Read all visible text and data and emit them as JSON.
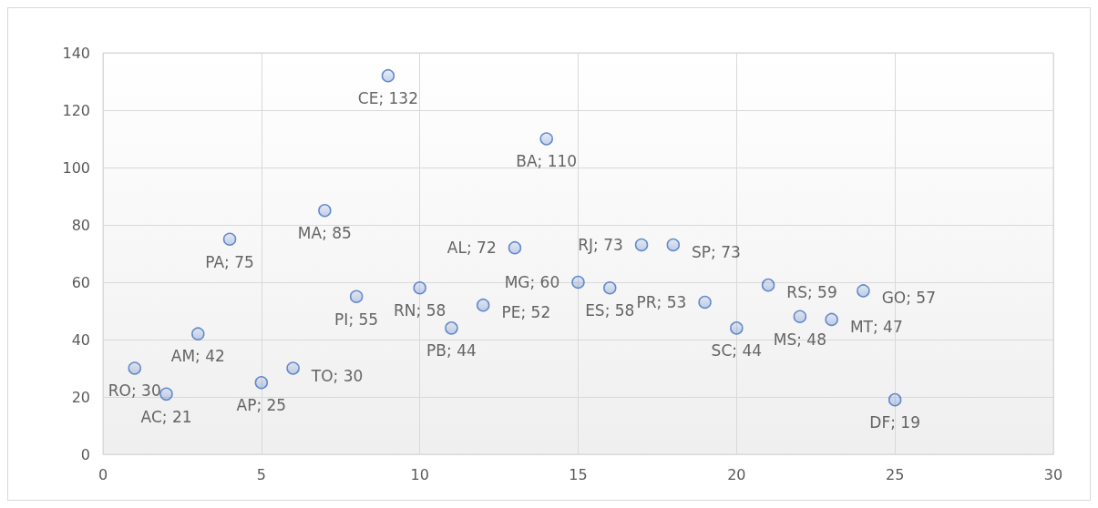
{
  "chart_data": {
    "type": "scatter",
    "x": [
      1,
      2,
      3,
      4,
      5,
      6,
      7,
      8,
      9,
      10,
      11,
      12,
      13,
      14,
      15,
      16,
      17,
      18,
      19,
      20,
      21,
      22,
      23,
      24,
      25
    ],
    "values": [
      30,
      21,
      42,
      75,
      25,
      30,
      85,
      55,
      132,
      58,
      44,
      52,
      72,
      110,
      60,
      58,
      73,
      73,
      53,
      44,
      59,
      48,
      47,
      57,
      19
    ],
    "value_labels": [
      "RO; 30",
      "AC; 21",
      "AM; 42",
      "PA; 75",
      "AP; 25",
      "TO; 30",
      "MA; 85",
      "PI; 55",
      "CE; 132",
      "RN; 58",
      "PB; 44",
      "PE; 52",
      "AL; 72",
      "BA; 110",
      "MG; 60",
      "ES; 58",
      "RJ; 73",
      "SP; 73",
      "PR; 53",
      "SC; 44",
      "RS; 59",
      "MS; 48",
      "MT; 47",
      "GO; 57",
      "DF; 19"
    ],
    "color": "#4472c4",
    "marker": "circle",
    "xlim": [
      0,
      30
    ],
    "xticks": [
      0,
      5,
      10,
      15,
      20,
      25,
      30
    ],
    "ylim": [
      0,
      140
    ],
    "yticks": [
      0,
      20,
      40,
      60,
      80,
      100,
      120,
      140
    ],
    "grid": true
  }
}
